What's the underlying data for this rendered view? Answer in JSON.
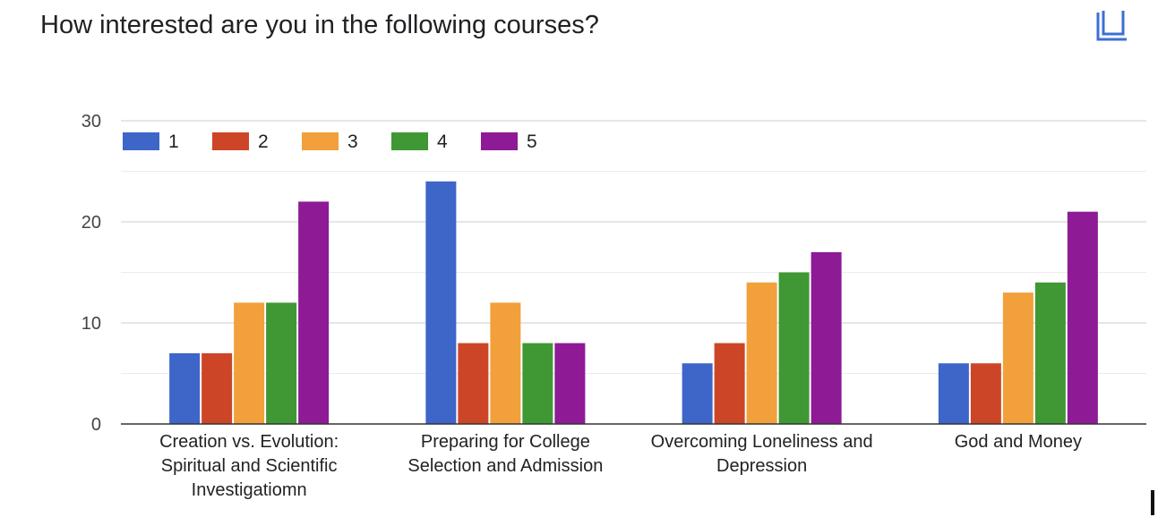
{
  "header": {
    "title": "How interested are you in the following courses?",
    "copy_icon": "copy-chart-icon"
  },
  "chart_data": {
    "type": "bar",
    "title": "How interested are you in the following courses?",
    "xlabel": "",
    "ylabel": "",
    "ylim": [
      0,
      30
    ],
    "yticks": [
      "0",
      "10",
      "20",
      "30"
    ],
    "grid": true,
    "legend_position": "top-left",
    "categories": [
      [
        "Creation vs. Evolution:",
        "Spiritual and Scientific",
        "Investigatiomn"
      ],
      [
        "Preparing for College",
        "Selection and Admission"
      ],
      [
        "Overcoming Loneliness and",
        "Depression"
      ],
      [
        "God and Money"
      ]
    ],
    "series": [
      {
        "name": "1",
        "color": "#3e65c8",
        "values": [
          7,
          24,
          6,
          6
        ]
      },
      {
        "name": "2",
        "color": "#cd4527",
        "values": [
          7,
          8,
          8,
          6
        ]
      },
      {
        "name": "3",
        "color": "#f2a03b",
        "values": [
          12,
          12,
          14,
          13
        ]
      },
      {
        "name": "4",
        "color": "#3f9833",
        "values": [
          12,
          8,
          15,
          14
        ]
      },
      {
        "name": "5",
        "color": "#8e1a96",
        "values": [
          22,
          8,
          17,
          21
        ]
      }
    ]
  }
}
